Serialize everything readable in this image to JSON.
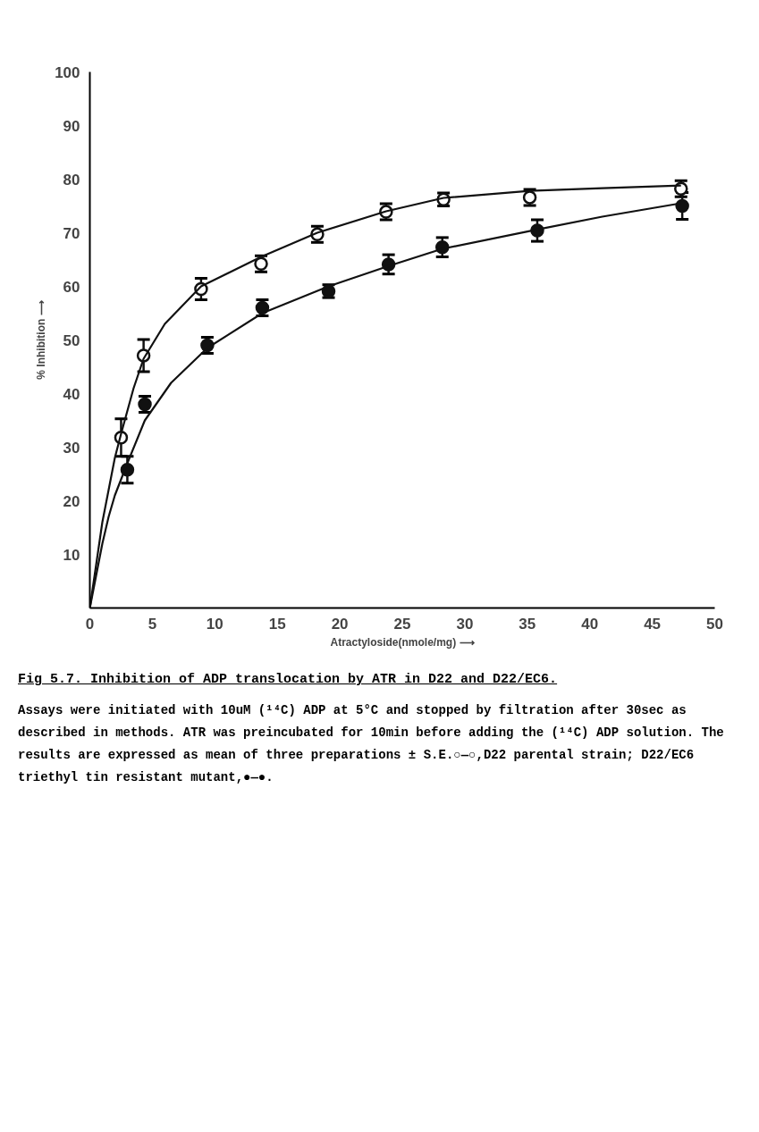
{
  "chart_data": {
    "type": "scatter",
    "title": "Fig 5.7. Inhibition of ADP translocation by ATR in D22 and D22/EC6.",
    "xlabel": "Atractyloside(nmole/mg) ⟶",
    "ylabel": "% Inhibition ⟶",
    "xlim": [
      0,
      50
    ],
    "ylim": [
      0,
      100
    ],
    "xticks": [
      0,
      5,
      10,
      15,
      20,
      25,
      30,
      35,
      40,
      45,
      50
    ],
    "yticks": [
      10,
      20,
      30,
      40,
      50,
      60,
      70,
      80,
      90,
      100
    ],
    "grid": false,
    "series": [
      {
        "marker": "circle",
        "color": "#ffffff",
        "x": [
          2.5,
          4.3,
          8.9,
          13.7,
          18.2,
          23.7,
          28.3,
          35.2,
          47.3
        ],
        "values": [
          31.8,
          47.1,
          59.5,
          64.2,
          69.7,
          73.9,
          76.2,
          76.6,
          78.2
        ],
        "errors": [
          3.5,
          3,
          2,
          1.5,
          1.5,
          1.5,
          1.2,
          1.5,
          1.5
        ]
      },
      {
        "marker": "circle",
        "color": "#111111",
        "x": [
          3.0,
          4.4,
          9.4,
          13.8,
          19.1,
          23.9,
          28.2,
          35.8,
          47.4
        ],
        "values": [
          25.8,
          38.0,
          49.0,
          56.0,
          59.1,
          64.1,
          67.3,
          70.4,
          75.0
        ],
        "errors": [
          2.5,
          1.5,
          1.5,
          1.5,
          1.2,
          1.8,
          1.8,
          2,
          2.5
        ]
      },
      {
        "type": "line",
        "color": "#111111",
        "x": [
          0,
          0.5,
          1,
          1.5,
          2,
          2.5,
          3.5,
          4.3,
          6,
          8.9,
          13.7,
          18.2,
          23.7,
          28.3,
          35.2,
          41,
          47.3
        ],
        "values": [
          0,
          8,
          16,
          22,
          28,
          32.5,
          41,
          46.5,
          53,
          60,
          65.5,
          70,
          74,
          76.5,
          77.8,
          78.3,
          78.8
        ]
      },
      {
        "type": "line",
        "color": "#111111",
        "x": [
          0,
          0.5,
          1,
          1.5,
          2,
          3,
          4.4,
          6.5,
          9.4,
          13.8,
          19.1,
          23.9,
          28.2,
          35.8,
          41,
          47.3
        ],
        "values": [
          0,
          6,
          12,
          17,
          21,
          27,
          35,
          42,
          48.5,
          55,
          60,
          63.8,
          67,
          70.6,
          73,
          75.5
        ]
      }
    ],
    "annotations": [
      "Assays were initiated with 10uM (¹⁴C) ADP at 5°C and stopped by filtration after 30sec as described in methods.  ATR was preincubated for 10min before adding the (¹⁴C) ADP solution. The results are expressed as mean of three preparations ± S.E.○—○,D22 parental strain; D22/EC6 triethyl tin resistant mutant,●—●."
    ]
  }
}
